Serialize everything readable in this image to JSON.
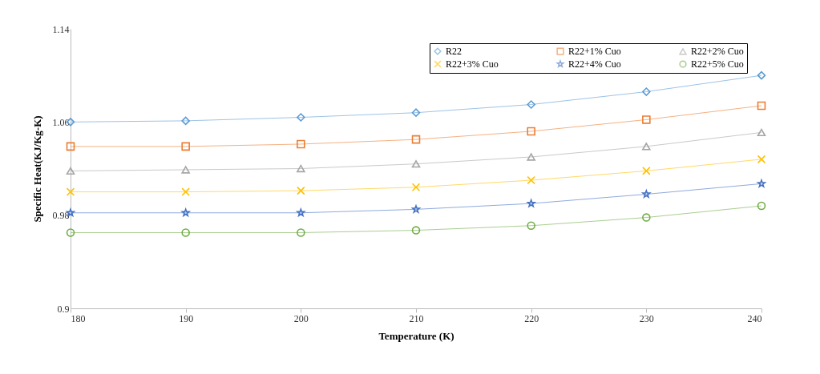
{
  "chart_data": {
    "type": "line",
    "xlabel": "Temperature (K)",
    "ylabel": "Specific Heat(KJ/Kg-K)",
    "x": [
      180,
      190,
      200,
      210,
      220,
      230,
      240
    ],
    "series": [
      {
        "name": "R22",
        "color": "#5b9bd5",
        "marker": "diamond",
        "values": [
          1.06,
          1.061,
          1.064,
          1.068,
          1.075,
          1.086,
          1.1
        ]
      },
      {
        "name": "R22+1% Cuo",
        "color": "#ed7d31",
        "marker": "square",
        "values": [
          1.039,
          1.039,
          1.041,
          1.045,
          1.052,
          1.062,
          1.074
        ]
      },
      {
        "name": "R22+2% Cuo",
        "color": "#a5a5a5",
        "marker": "triangle",
        "values": [
          1.018,
          1.019,
          1.02,
          1.024,
          1.03,
          1.039,
          1.051
        ]
      },
      {
        "name": "R22+3% Cuo",
        "color": "#ffc000",
        "marker": "cross",
        "values": [
          1.0,
          1.0,
          1.001,
          1.004,
          1.01,
          1.018,
          1.028
        ]
      },
      {
        "name": "R22+4% Cuo",
        "color": "#4472c4",
        "marker": "star",
        "values": [
          0.982,
          0.982,
          0.982,
          0.985,
          0.99,
          0.998,
          1.007
        ]
      },
      {
        "name": "R22+5% Cuo",
        "color": "#70ad47",
        "marker": "circle",
        "values": [
          0.965,
          0.965,
          0.965,
          0.967,
          0.971,
          0.978,
          0.988
        ]
      }
    ],
    "xlim": [
      180,
      240
    ],
    "xticks": [
      180,
      190,
      200,
      210,
      220,
      230,
      240
    ],
    "ylim": [
      0.9,
      1.14
    ],
    "yticks": [
      {
        "value": 0.9,
        "label": "0.9"
      },
      0.98,
      1.06,
      1.14
    ],
    "grid": false,
    "legend": "top right",
    "line_style": "solid"
  }
}
